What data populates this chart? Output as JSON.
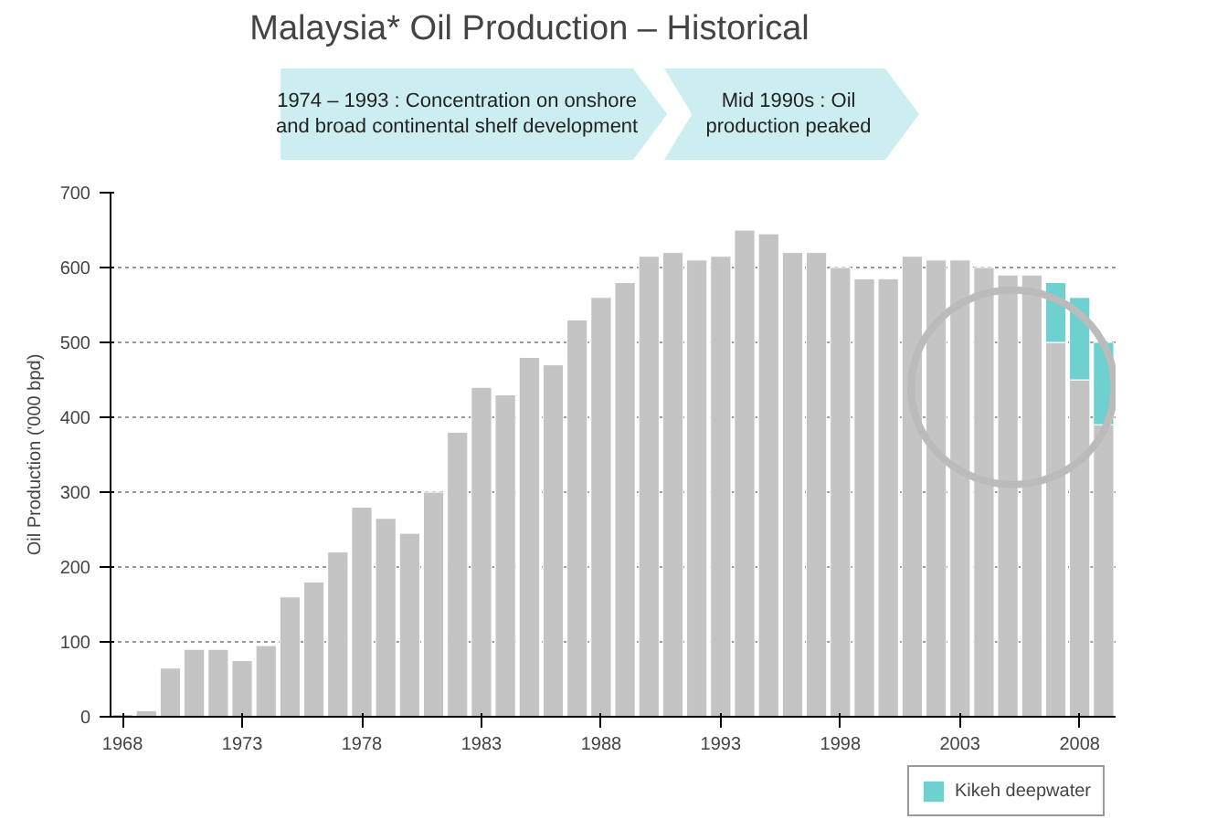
{
  "chart_data": {
    "type": "bar",
    "title": "Malaysia* Oil Production – Historical",
    "annotations": [
      "1974 – 1993 : Concentration on onshore and broad continental shelf development",
      "Mid 1990s : Oil production peaked"
    ],
    "ylabel": "Oil Production ('000 bpd)",
    "x": [
      1968,
      1969,
      1970,
      1971,
      1972,
      1973,
      1974,
      1975,
      1976,
      1977,
      1978,
      1979,
      1980,
      1981,
      1982,
      1983,
      1984,
      1985,
      1986,
      1987,
      1988,
      1989,
      1990,
      1991,
      1992,
      1993,
      1994,
      1995,
      1996,
      1997,
      1998,
      1999,
      2000,
      2001,
      2002,
      2003,
      2004,
      2005,
      2006,
      2007,
      2008,
      2009
    ],
    "stacked": true,
    "series": [
      {
        "color": "#c4c4c4",
        "values": [
          3,
          8,
          65,
          90,
          90,
          75,
          95,
          160,
          180,
          220,
          280,
          265,
          245,
          300,
          380,
          440,
          430,
          480,
          470,
          530,
          560,
          580,
          615,
          620,
          610,
          615,
          650,
          645,
          620,
          620,
          600,
          585,
          585,
          615,
          610,
          610,
          600,
          590,
          590,
          500,
          450,
          390
        ]
      },
      {
        "name": "Kikeh deepwater",
        "color": "#6fd0d0",
        "values": [
          null,
          null,
          null,
          null,
          null,
          null,
          null,
          null,
          null,
          null,
          null,
          null,
          null,
          null,
          null,
          null,
          null,
          null,
          null,
          null,
          null,
          null,
          null,
          null,
          null,
          null,
          null,
          null,
          null,
          null,
          null,
          null,
          null,
          null,
          null,
          null,
          null,
          null,
          null,
          80,
          110,
          110
        ]
      }
    ],
    "xlim": [
      1967.5,
      2009.5
    ],
    "xticks": [
      1968,
      1973,
      1978,
      1983,
      1988,
      1993,
      1998,
      2003,
      2008
    ],
    "ylim": [
      0,
      700
    ],
    "yticks": [
      0,
      100,
      200,
      300,
      400,
      500,
      600,
      700
    ],
    "grid": "y",
    "legend": "bottom right"
  }
}
